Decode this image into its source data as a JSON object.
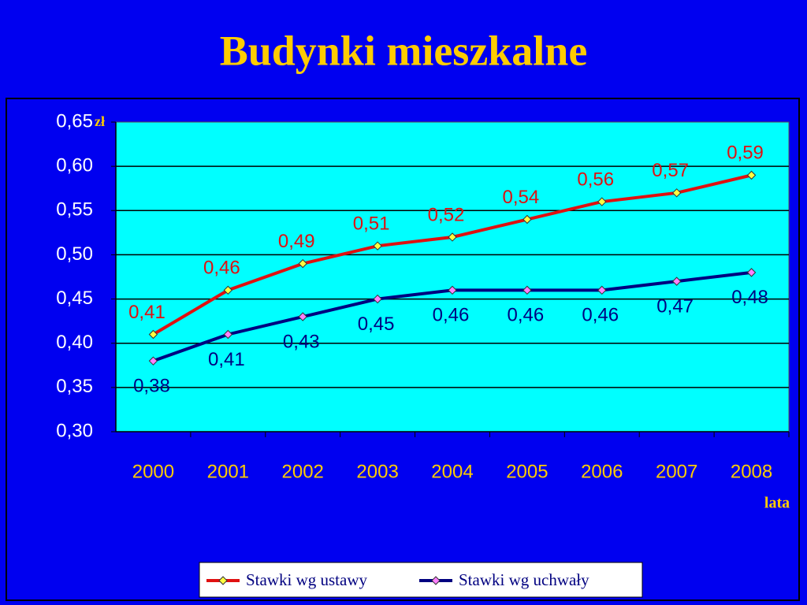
{
  "chart_data": {
    "type": "line",
    "title": "Budynki mieszkalne",
    "y_unit_label": "zł",
    "x_axis_label": "lata",
    "categories": [
      "2000",
      "2001",
      "2002",
      "2003",
      "2004",
      "2005",
      "2006",
      "2007",
      "2008"
    ],
    "series": [
      {
        "name": "Stawki wg ustawy",
        "color": "#e01010",
        "marker_color": "#ffff40",
        "values": [
          0.41,
          0.46,
          0.49,
          0.51,
          0.52,
          0.54,
          0.56,
          0.57,
          0.59
        ],
        "value_labels": [
          "0,41",
          "0,46",
          "0,49",
          "0,51",
          "0,52",
          "0,54",
          "0,56",
          "0,57",
          "0,59"
        ]
      },
      {
        "name": "Stawki wg uchwały",
        "color": "#000080",
        "marker_color": "#ff80ff",
        "values": [
          0.38,
          0.41,
          0.43,
          0.45,
          0.46,
          0.46,
          0.46,
          0.47,
          0.48
        ],
        "value_labels": [
          "0,38",
          "0,41",
          "0,43",
          "0,45",
          "0,46",
          "0,46",
          "0,46",
          "0,47",
          "0,48"
        ]
      }
    ],
    "ylim": [
      0.3,
      0.65
    ],
    "yticks": [
      {
        "value": 0.3,
        "label": "0,30"
      },
      {
        "value": 0.35,
        "label": "0,35"
      },
      {
        "value": 0.4,
        "label": "0,40"
      },
      {
        "value": 0.45,
        "label": "0,45"
      },
      {
        "value": 0.5,
        "label": "0,50"
      },
      {
        "value": 0.55,
        "label": "0,55"
      },
      {
        "value": 0.6,
        "label": "0,60"
      },
      {
        "value": 0.65,
        "label": "0,65"
      }
    ],
    "grid": true,
    "legend": "bottom"
  }
}
